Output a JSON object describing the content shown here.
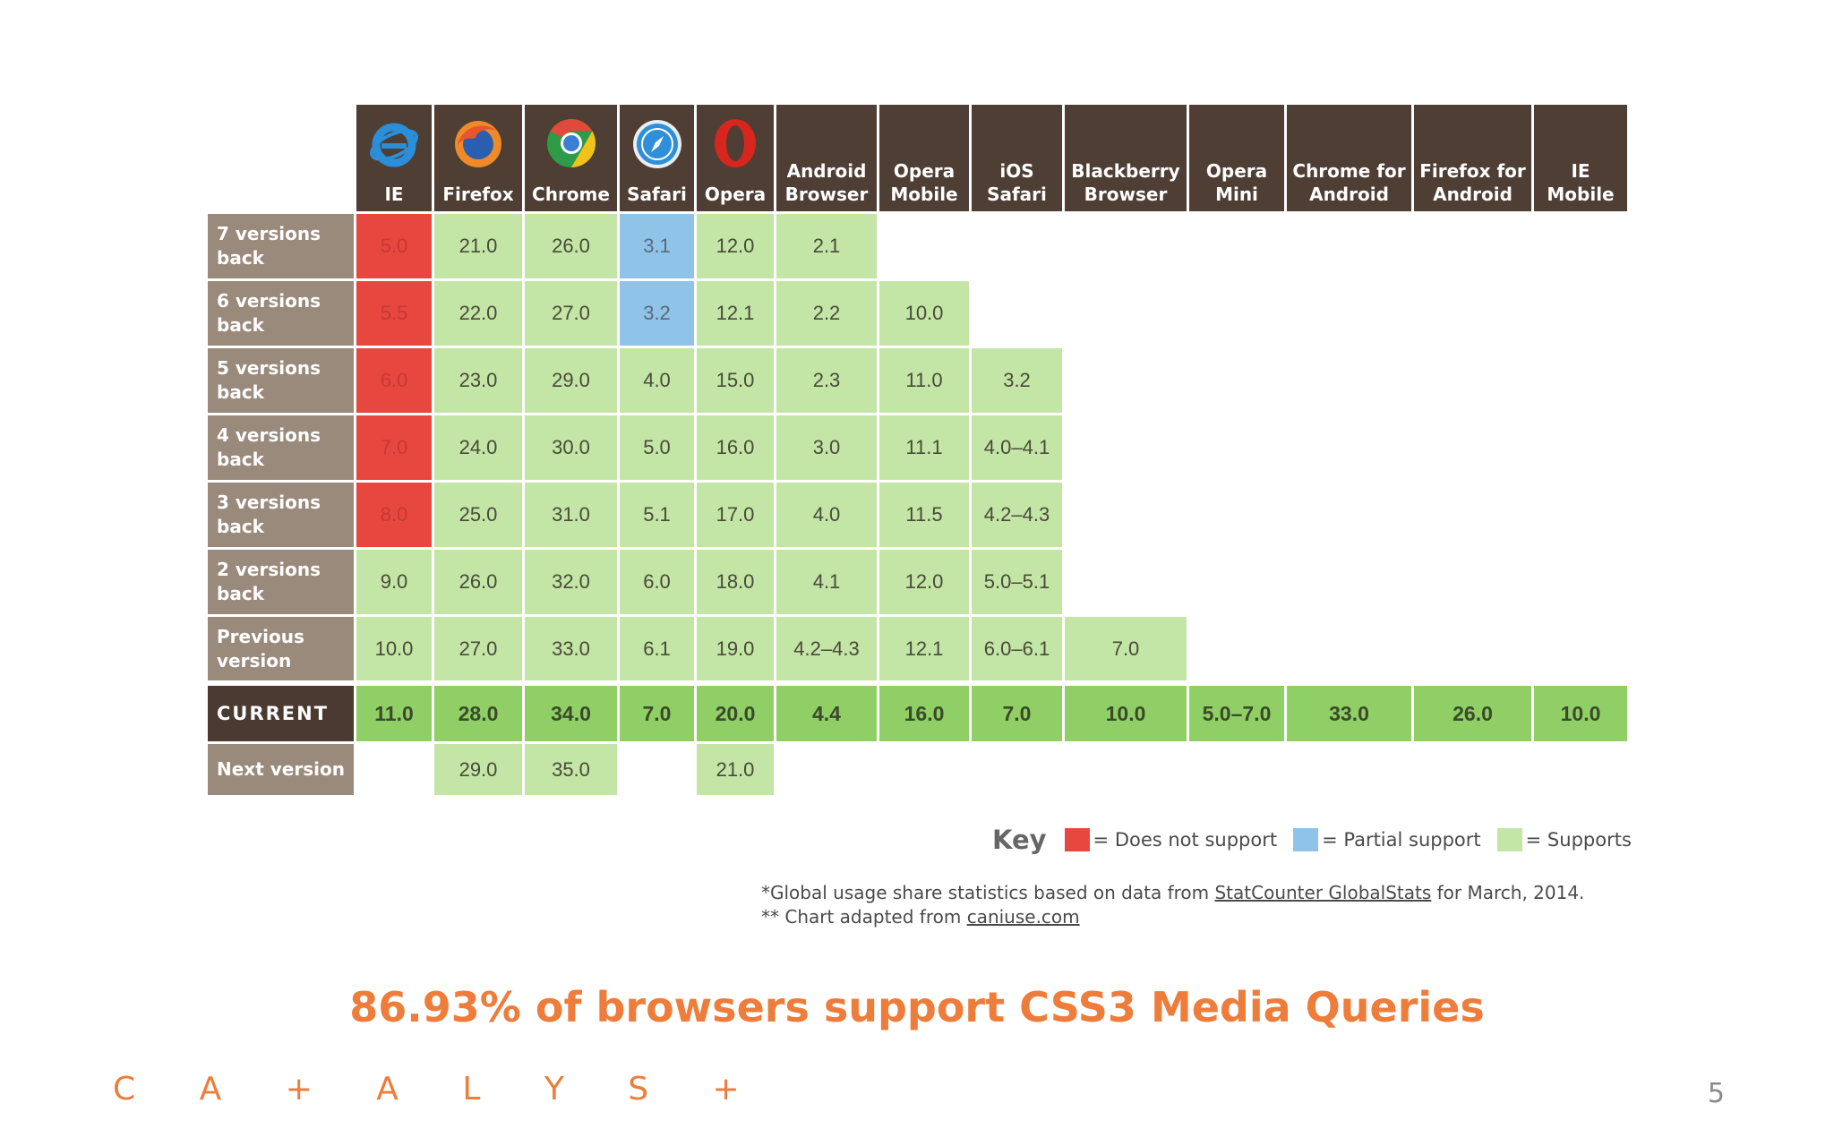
{
  "chart_data": {
    "type": "table",
    "columns": [
      {
        "name": "IE",
        "icon": "ie-icon"
      },
      {
        "name": "Firefox",
        "icon": "firefox-icon"
      },
      {
        "name": "Chrome",
        "icon": "chrome-icon"
      },
      {
        "name": "Safari",
        "icon": "safari-icon"
      },
      {
        "name": "Opera",
        "icon": "opera-icon"
      },
      {
        "name": "Android\nBrowser"
      },
      {
        "name": "Opera\nMobile"
      },
      {
        "name": "iOS\nSafari"
      },
      {
        "name": "Blackberry\nBrowser"
      },
      {
        "name": "Opera\nMini"
      },
      {
        "name": "Chrome for\nAndroid"
      },
      {
        "name": "Firefox for\nAndroid"
      },
      {
        "name": "IE\nMobile"
      }
    ],
    "rows": [
      {
        "label": "7 versions back",
        "cells": [
          [
            "5.0",
            "n"
          ],
          [
            "21.0",
            "y"
          ],
          [
            "26.0",
            "y"
          ],
          [
            "3.1",
            "p"
          ],
          [
            "12.0",
            "y"
          ],
          [
            "2.1",
            "y"
          ],
          null,
          null,
          null,
          null,
          null,
          null,
          null
        ]
      },
      {
        "label": "6 versions back",
        "cells": [
          [
            "5.5",
            "n"
          ],
          [
            "22.0",
            "y"
          ],
          [
            "27.0",
            "y"
          ],
          [
            "3.2",
            "p"
          ],
          [
            "12.1",
            "y"
          ],
          [
            "2.2",
            "y"
          ],
          [
            "10.0",
            "y"
          ],
          null,
          null,
          null,
          null,
          null,
          null
        ]
      },
      {
        "label": "5 versions back",
        "cells": [
          [
            "6.0",
            "n"
          ],
          [
            "23.0",
            "y"
          ],
          [
            "29.0",
            "y"
          ],
          [
            "4.0",
            "y"
          ],
          [
            "15.0",
            "y"
          ],
          [
            "2.3",
            "y"
          ],
          [
            "11.0",
            "y"
          ],
          [
            "3.2",
            "y"
          ],
          null,
          null,
          null,
          null,
          null
        ]
      },
      {
        "label": "4 versions back",
        "cells": [
          [
            "7.0",
            "n"
          ],
          [
            "24.0",
            "y"
          ],
          [
            "30.0",
            "y"
          ],
          [
            "5.0",
            "y"
          ],
          [
            "16.0",
            "y"
          ],
          [
            "3.0",
            "y"
          ],
          [
            "11.1",
            "y"
          ],
          [
            "4.0–4.1",
            "y"
          ],
          null,
          null,
          null,
          null,
          null
        ]
      },
      {
        "label": "3 versions back",
        "cells": [
          [
            "8.0",
            "n"
          ],
          [
            "25.0",
            "y"
          ],
          [
            "31.0",
            "y"
          ],
          [
            "5.1",
            "y"
          ],
          [
            "17.0",
            "y"
          ],
          [
            "4.0",
            "y"
          ],
          [
            "11.5",
            "y"
          ],
          [
            "4.2–4.3",
            "y"
          ],
          null,
          null,
          null,
          null,
          null
        ]
      },
      {
        "label": "2 versions back",
        "cells": [
          [
            "9.0",
            "y"
          ],
          [
            "26.0",
            "y"
          ],
          [
            "32.0",
            "y"
          ],
          [
            "6.0",
            "y"
          ],
          [
            "18.0",
            "y"
          ],
          [
            "4.1",
            "y"
          ],
          [
            "12.0",
            "y"
          ],
          [
            "5.0–5.1",
            "y"
          ],
          null,
          null,
          null,
          null,
          null
        ]
      },
      {
        "label": "Previous version",
        "cells": [
          [
            "10.0",
            "y"
          ],
          [
            "27.0",
            "y"
          ],
          [
            "33.0",
            "y"
          ],
          [
            "6.1",
            "y"
          ],
          [
            "19.0",
            "y"
          ],
          [
            "4.2–4.3",
            "y"
          ],
          [
            "12.1",
            "y"
          ],
          [
            "6.0–6.1",
            "y"
          ],
          [
            "7.0",
            "y"
          ],
          null,
          null,
          null,
          null
        ]
      },
      {
        "label": "CURRENT",
        "current": true,
        "cells": [
          [
            "11.0",
            "y"
          ],
          [
            "28.0",
            "y"
          ],
          [
            "34.0",
            "y"
          ],
          [
            "7.0",
            "y"
          ],
          [
            "20.0",
            "y"
          ],
          [
            "4.4",
            "y"
          ],
          [
            "16.0",
            "y"
          ],
          [
            "7.0",
            "y"
          ],
          [
            "10.0",
            "y"
          ],
          [
            "5.0–7.0",
            "y"
          ],
          [
            "33.0",
            "y"
          ],
          [
            "26.0",
            "y"
          ],
          [
            "10.0",
            "y"
          ]
        ]
      },
      {
        "label": "Next version",
        "cells": [
          null,
          [
            "29.0",
            "y"
          ],
          [
            "35.0",
            "y"
          ],
          null,
          [
            "21.0",
            "y"
          ],
          null,
          null,
          null,
          null,
          null,
          null,
          null,
          null
        ]
      }
    ],
    "colors": {
      "n": "#e8473f",
      "p": "#8fc3e8",
      "y": "#c3e5a5",
      "current": "#8fcf65"
    },
    "legend": {
      "title": "Key",
      "items": [
        {
          "label": "= Does not support",
          "color": "#e8473f"
        },
        {
          "label": "= Partial support",
          "color": "#8fc3e8"
        },
        {
          "label": "= Supports",
          "color": "#c3e5a5"
        }
      ]
    }
  },
  "notes": {
    "line1_pre": "*Global usage share statistics based on data from ",
    "line1_link": "StatCounter GlobalStats",
    "line1_post": " for March, 2014.",
    "line2_pre": "** Chart adapted from ",
    "line2_link": "caniuse.com"
  },
  "headline": "86.93% of browsers support CSS3 Media Queries",
  "logo": "CATALYST",
  "page_number": "5"
}
